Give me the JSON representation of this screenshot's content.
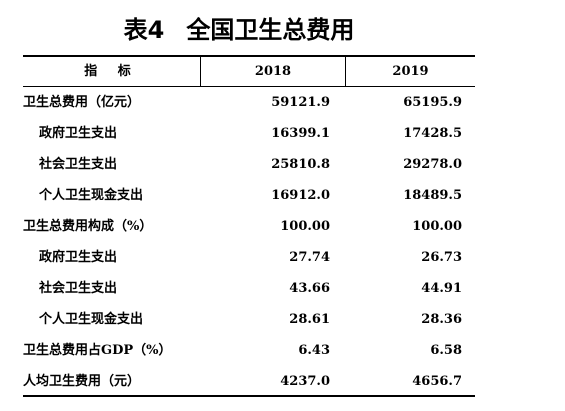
{
  "title": {
    "prefix": "表4",
    "text": "全国卫生总费用"
  },
  "table": {
    "headers": {
      "label": "指 标",
      "col1": "2018",
      "col2": "2019"
    },
    "rows": [
      {
        "label": "卫生总费用（亿元）",
        "v2018": "59121.9",
        "v2019": "65195.9",
        "indent": false
      },
      {
        "label": "政府卫生支出",
        "v2018": "16399.1",
        "v2019": "17428.5",
        "indent": true
      },
      {
        "label": "社会卫生支出",
        "v2018": "25810.8",
        "v2019": "29278.0",
        "indent": true
      },
      {
        "label": "个人卫生现金支出",
        "v2018": "16912.0",
        "v2019": "18489.5",
        "indent": true
      },
      {
        "label": "卫生总费用构成（%）",
        "v2018": "100.00",
        "v2019": "100.00",
        "indent": false
      },
      {
        "label": "政府卫生支出",
        "v2018": "27.74",
        "v2019": "26.73",
        "indent": true
      },
      {
        "label": "社会卫生支出",
        "v2018": "43.66",
        "v2019": "44.91",
        "indent": true
      },
      {
        "label": "个人卫生现金支出",
        "v2018": "28.61",
        "v2019": "28.36",
        "indent": true
      },
      {
        "label": "卫生总费用占GDP（%）",
        "v2018": "6.43",
        "v2019": "6.58",
        "indent": false
      },
      {
        "label": "人均卫生费用（元）",
        "v2018": "4237.0",
        "v2019": "4656.7",
        "indent": false
      }
    ]
  }
}
